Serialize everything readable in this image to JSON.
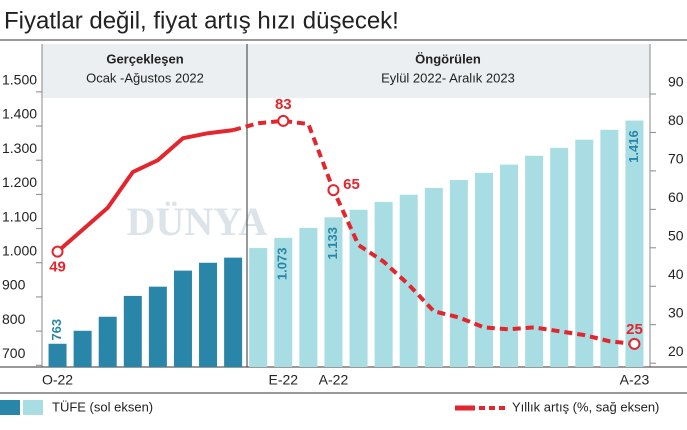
{
  "chart_data": {
    "type": "bar-line",
    "title": "Fiyatlar değil, fiyat artış hızı düşecek!",
    "periods": [
      {
        "name": "Gerçekleşen",
        "range": "Ocak -Ağustos 2022"
      },
      {
        "name": "Öngörülen",
        "range": "Eylül 2022- Aralık 2023"
      }
    ],
    "watermark": "DÜNYA",
    "categories": [
      "O-22",
      null,
      null,
      null,
      null,
      null,
      null,
      null,
      null,
      "E-22",
      null,
      "A-22",
      null,
      null,
      null,
      null,
      null,
      null,
      null,
      null,
      null,
      null,
      null,
      "A-23"
    ],
    "series": [
      {
        "name": "TÜFE (sol eksen)",
        "type": "bar",
        "legend_colors": [
          "#2a86a8",
          "#a8dde3"
        ],
        "colors": [
          "#2a86a8",
          "#2a86a8",
          "#2a86a8",
          "#2a86a8",
          "#2a86a8",
          "#2a86a8",
          "#2a86a8",
          "#2a86a8",
          "#a8dde3",
          "#a8dde3",
          "#a8dde3",
          "#a8dde3",
          "#a8dde3",
          "#a8dde3",
          "#a8dde3",
          "#a8dde3",
          "#a8dde3",
          "#a8dde3",
          "#a8dde3",
          "#a8dde3",
          "#a8dde3",
          "#a8dde3",
          "#a8dde3",
          "#a8dde3"
        ],
        "values": [
          763,
          801,
          842,
          903,
          930,
          977,
          1000,
          1015,
          1043,
          1073,
          1102,
          1133,
          1155,
          1178,
          1199,
          1219,
          1242,
          1263,
          1287,
          1313,
          1336,
          1360,
          1389,
          1416
        ],
        "value_labels": [
          "763",
          null,
          null,
          null,
          null,
          null,
          null,
          null,
          null,
          "1.073",
          null,
          "1.133",
          null,
          null,
          null,
          null,
          null,
          null,
          null,
          null,
          null,
          null,
          null,
          "1.416"
        ],
        "label_color": "#2a86a8"
      },
      {
        "name": "Yıllık artış (%, sağ eksen)",
        "type": "line",
        "axis": "y2",
        "color": "#e3262d",
        "dash_from": 7,
        "values": [
          49,
          54.7,
          60.4,
          69.7,
          72.8,
          78.5,
          79.8,
          80.6,
          82.4,
          83,
          82.2,
          65,
          50.7,
          46.4,
          40.4,
          33.5,
          31.9,
          29.3,
          28.8,
          29.3,
          28.3,
          27.3,
          25.7,
          25
        ],
        "value_labels": [
          "49",
          null,
          null,
          null,
          null,
          null,
          null,
          null,
          null,
          "83",
          null,
          "65",
          null,
          null,
          null,
          null,
          null,
          null,
          null,
          null,
          null,
          null,
          null,
          "25"
        ]
      }
    ],
    "ylim": [
      695,
      1640
    ],
    "yticks": [
      700,
      800,
      900,
      {
        "value": 1000,
        "label": "1.000"
      },
      {
        "value": 1100,
        "label": "1.100"
      },
      {
        "value": 1200,
        "label": "1.200"
      },
      {
        "value": 1300,
        "label": "1.300"
      },
      {
        "value": 1400,
        "label": "1.400"
      },
      {
        "value": 1500,
        "label": "1.500"
      }
    ],
    "y2lim": [
      19,
      103
    ],
    "y2ticks": [
      20,
      30,
      40,
      50,
      60,
      70,
      80,
      90
    ]
  }
}
